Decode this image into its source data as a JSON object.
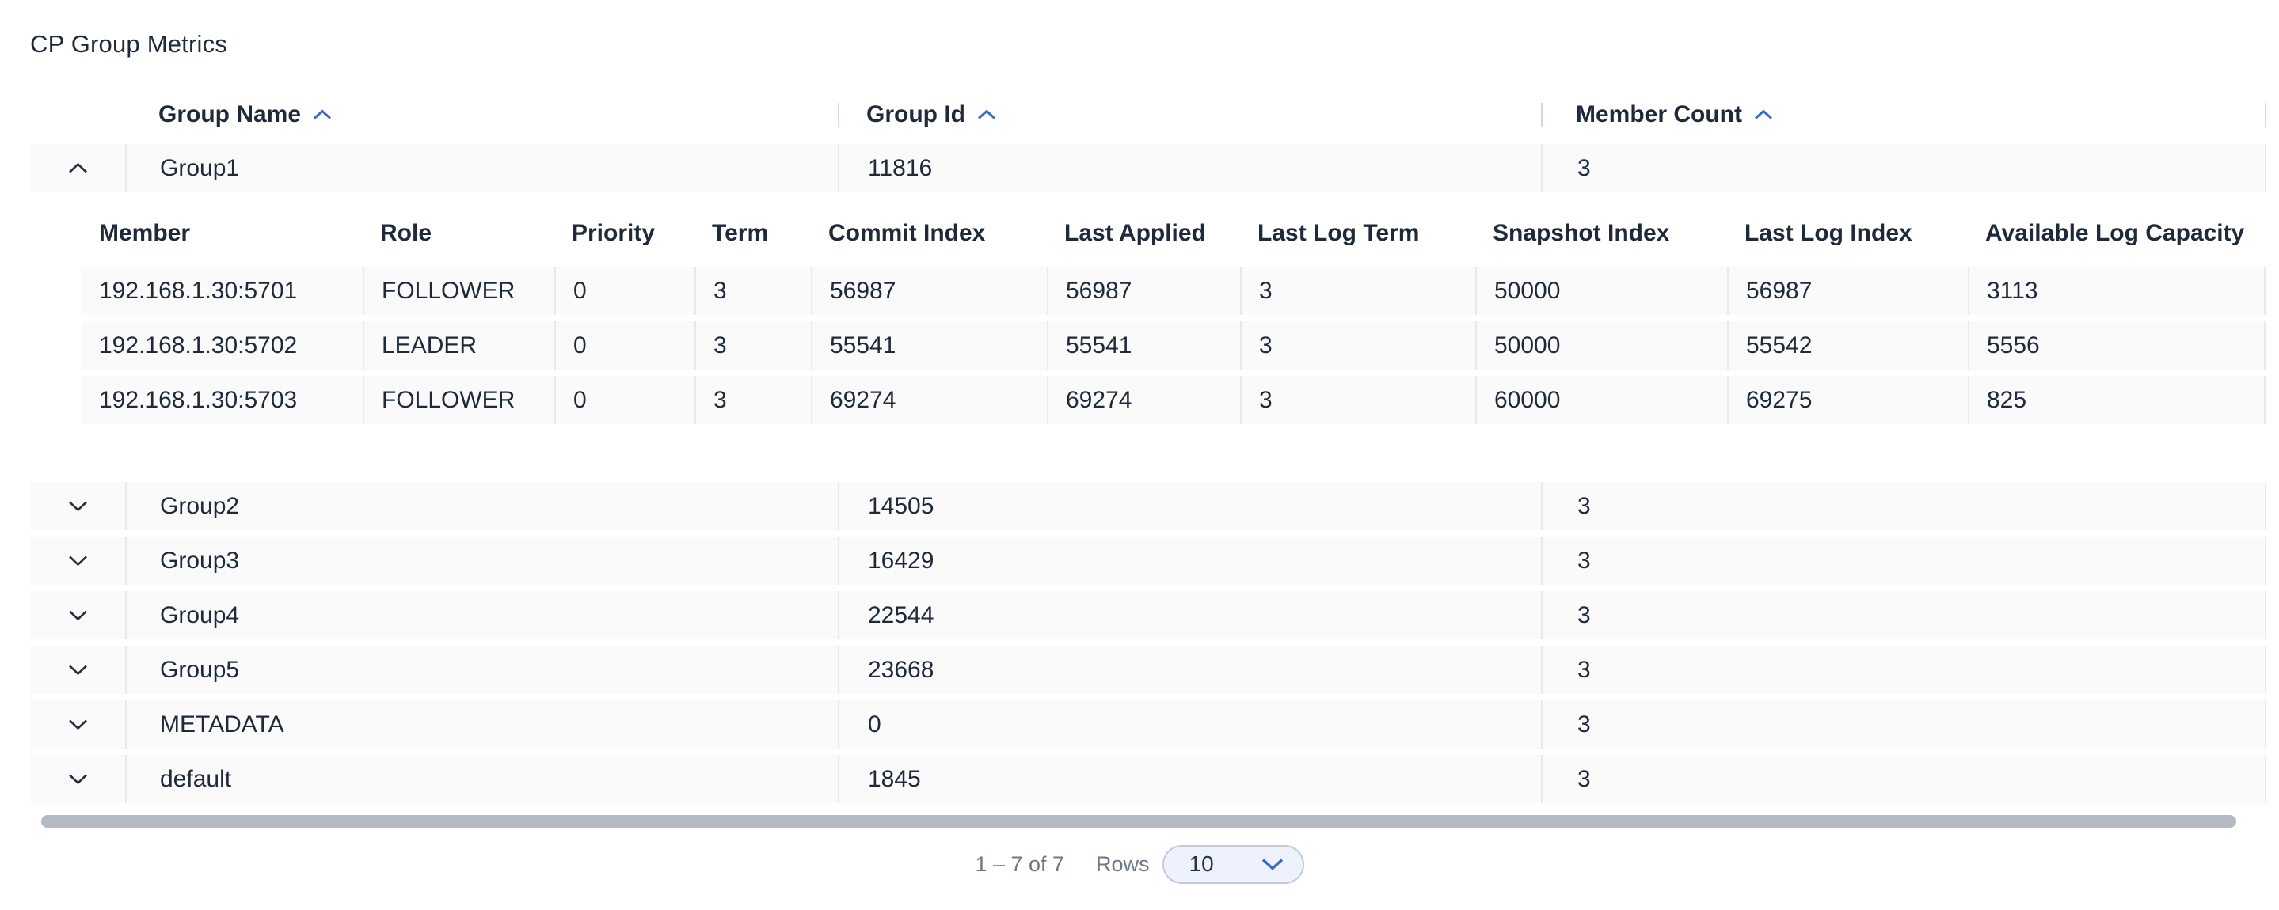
{
  "page": {
    "title": "CP Group Metrics"
  },
  "colors": {
    "text_dark": "#1e2a3a",
    "accent_blue": "#3c68cb",
    "row_background": "#fafafa",
    "divider": "#e7e9ec",
    "scrollbar": "#b3bac4",
    "muted_text": "#6f7785",
    "select_background": "#edf2fc"
  },
  "table": {
    "columns": [
      {
        "label": "Group Name",
        "sort": "asc"
      },
      {
        "label": "Group Id",
        "sort": "asc"
      },
      {
        "label": "Member Count",
        "sort": "asc"
      }
    ],
    "rows": [
      {
        "name": "Group1",
        "group_id": "11816",
        "member_count": "3",
        "expanded": true
      },
      {
        "name": "Group2",
        "group_id": "14505",
        "member_count": "3",
        "expanded": false
      },
      {
        "name": "Group3",
        "group_id": "16429",
        "member_count": "3",
        "expanded": false
      },
      {
        "name": "Group4",
        "group_id": "22544",
        "member_count": "3",
        "expanded": false
      },
      {
        "name": "Group5",
        "group_id": "23668",
        "member_count": "3",
        "expanded": false
      },
      {
        "name": "METADATA",
        "group_id": "0",
        "member_count": "3",
        "expanded": false
      },
      {
        "name": "default",
        "group_id": "1845",
        "member_count": "3",
        "expanded": false
      }
    ]
  },
  "detail": {
    "columns": [
      "Member",
      "Role",
      "Priority",
      "Term",
      "Commit Index",
      "Last Applied",
      "Last Log Term",
      "Snapshot Index",
      "Last Log Index",
      "Available Log Capacity"
    ],
    "rows": [
      [
        "192.168.1.30:5701",
        "FOLLOWER",
        "0",
        "3",
        "56987",
        "56987",
        "3",
        "50000",
        "56987",
        "3113"
      ],
      [
        "192.168.1.30:5702",
        "LEADER",
        "0",
        "3",
        "55541",
        "55541",
        "3",
        "50000",
        "55542",
        "5556"
      ],
      [
        "192.168.1.30:5703",
        "FOLLOWER",
        "0",
        "3",
        "69274",
        "69274",
        "3",
        "60000",
        "69275",
        "825"
      ]
    ]
  },
  "pagination": {
    "range": "1 – 7 of 7",
    "rows_label": "Rows",
    "page_size": "10"
  }
}
